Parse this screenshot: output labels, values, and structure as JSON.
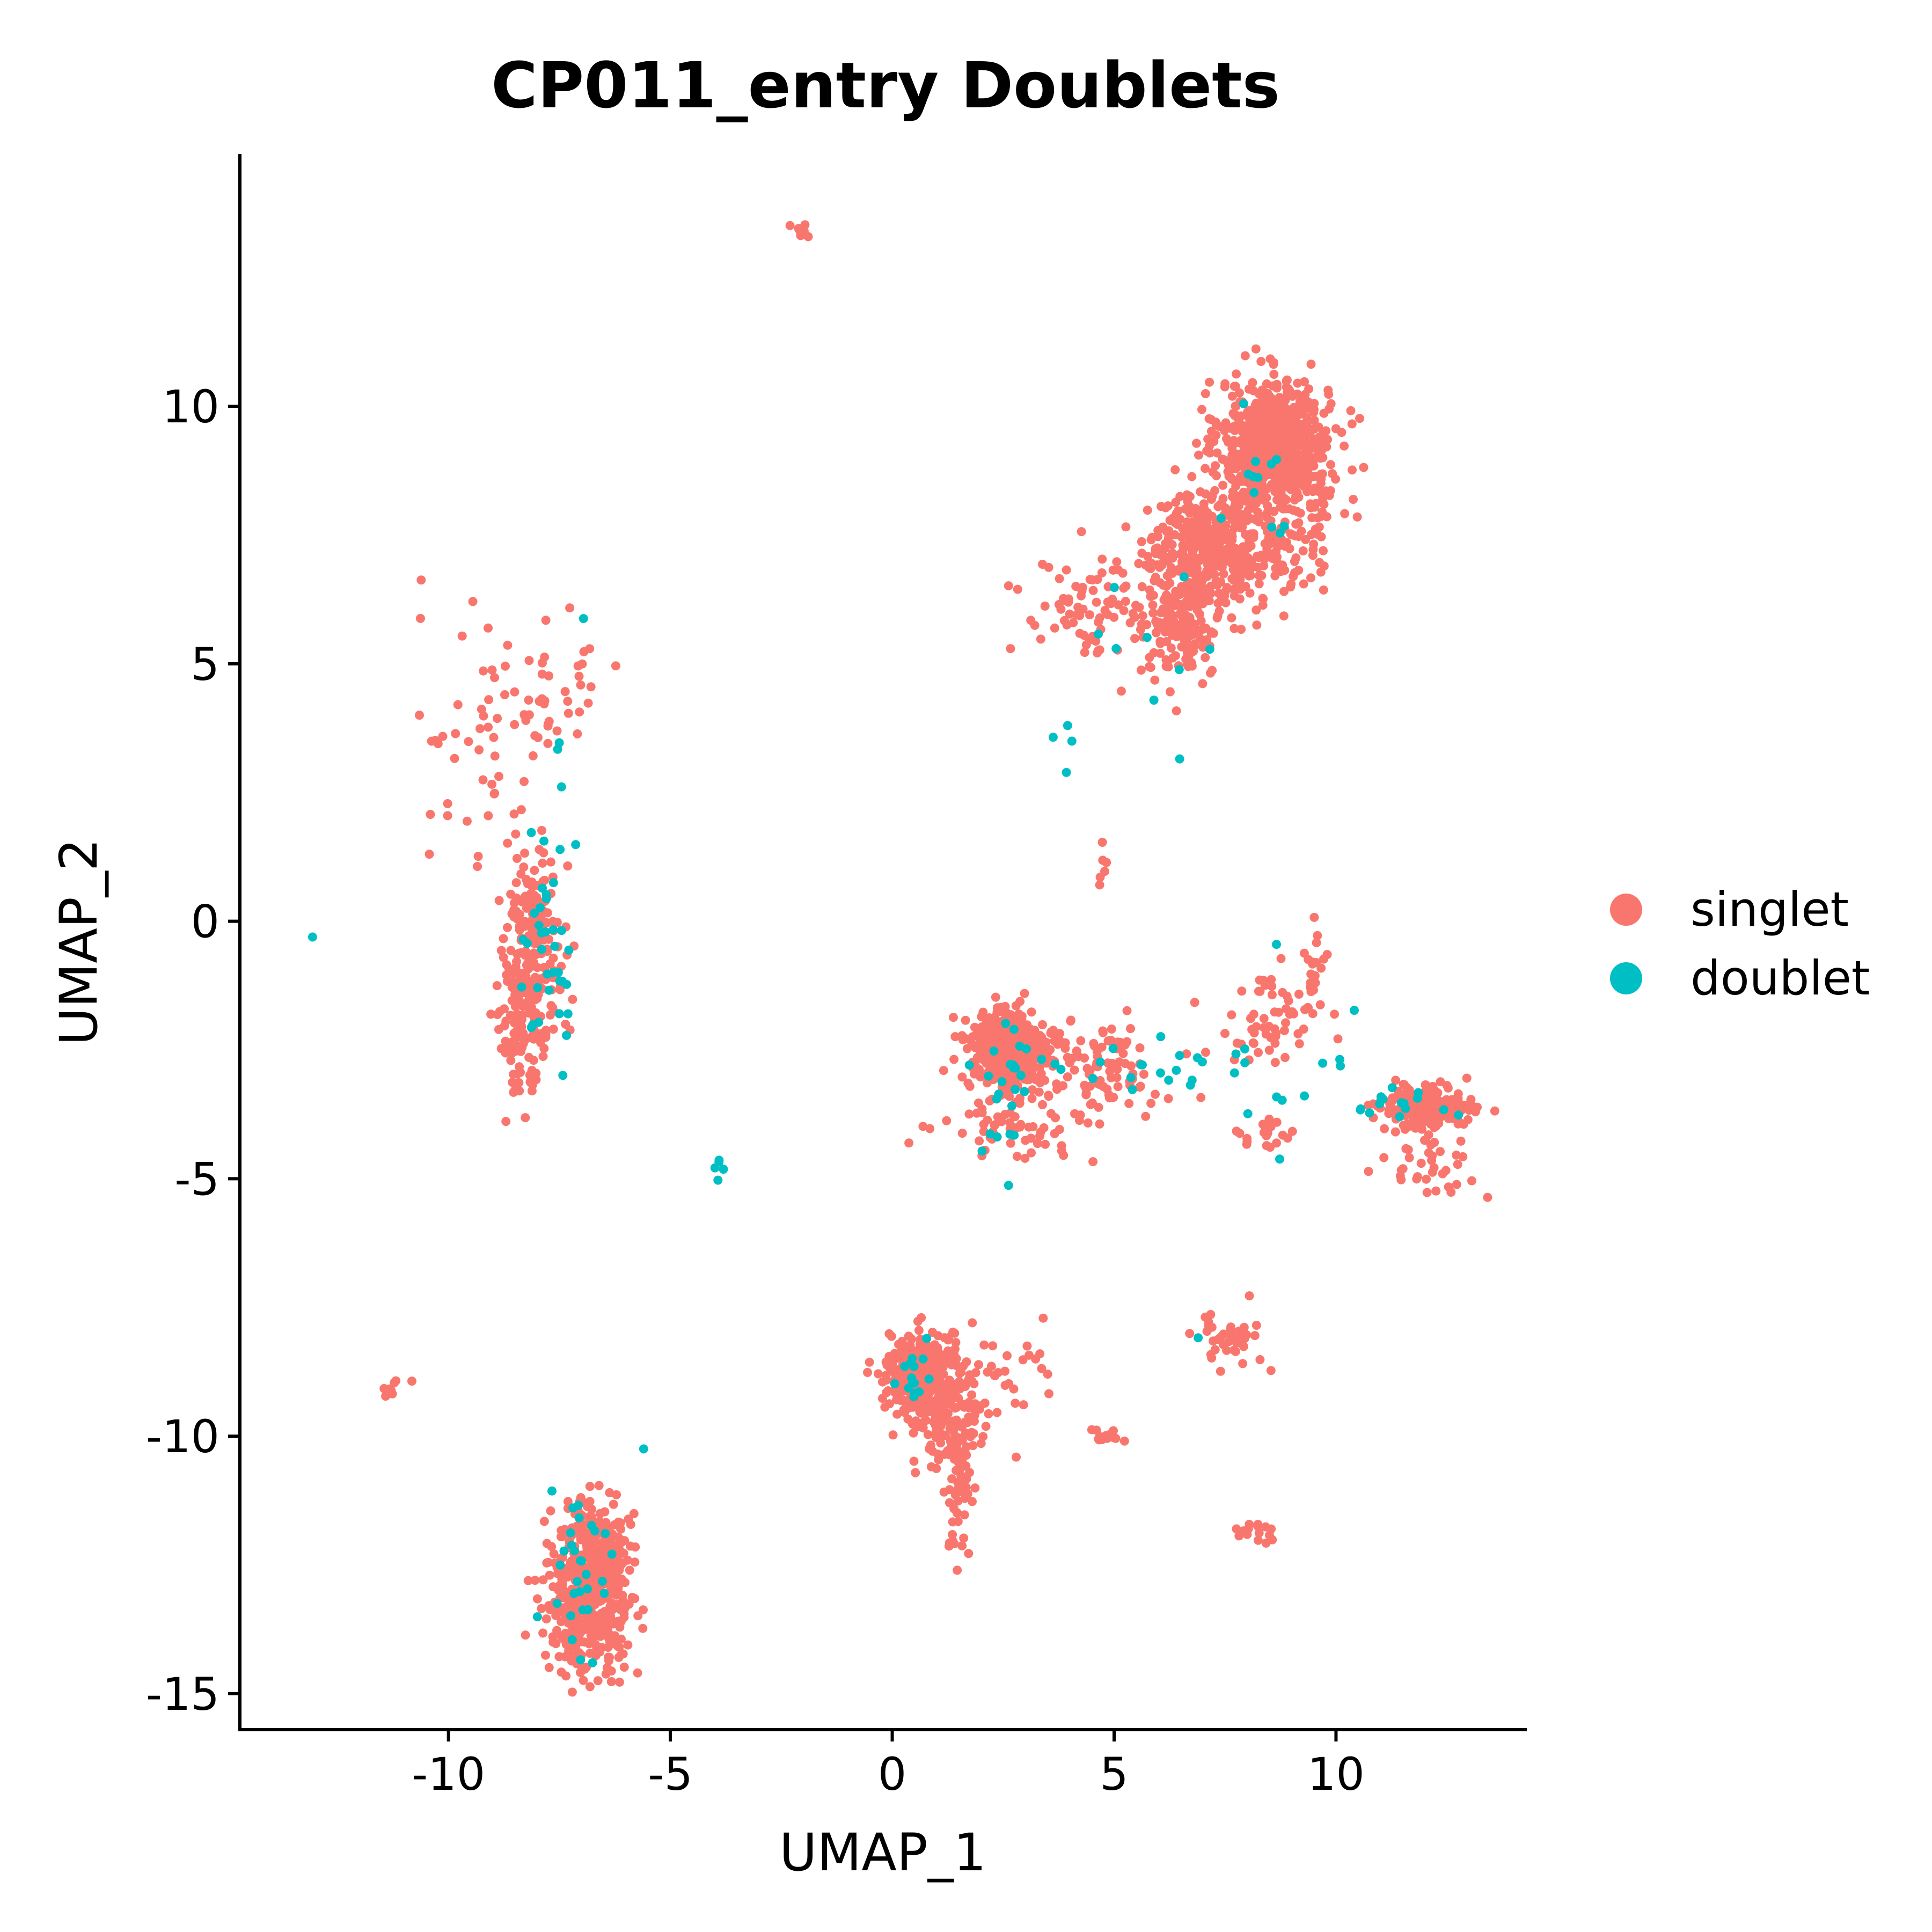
{
  "chart_data": {
    "type": "scatter",
    "title": "CP011_entry Doublets",
    "xlabel": "UMAP_1",
    "ylabel": "UMAP_2",
    "xlim": [
      -14.7,
      14.3
    ],
    "ylim": [
      -15.7,
      14.9
    ],
    "x_ticks": [
      -10,
      -5,
      0,
      5,
      10
    ],
    "x_tick_labels": [
      "-10",
      "-5",
      "0",
      "5",
      "10"
    ],
    "y_ticks": [
      -15,
      -10,
      -5,
      0,
      5,
      10
    ],
    "y_tick_labels": [
      "-15",
      "-10",
      "-5",
      "0",
      "5",
      "10"
    ],
    "grid": false,
    "legend_position": "right",
    "series": [
      {
        "name": "singlet",
        "color": "#F8766D",
        "clusters": [
          {
            "cx": 8.6,
            "cy": 9.3,
            "sx": 0.6,
            "sy": 0.6,
            "n": 700
          },
          {
            "cx": 7.4,
            "cy": 7.3,
            "sx": 0.8,
            "sy": 0.6,
            "n": 450
          },
          {
            "cx": 6.6,
            "cy": 5.9,
            "sx": 0.4,
            "sy": 0.6,
            "n": 180
          },
          {
            "cx": 4.6,
            "cy": 6.0,
            "sx": 1.0,
            "sy": 0.5,
            "n": 90
          },
          {
            "cx": 9.4,
            "cy": 8.5,
            "sx": 0.4,
            "sy": 0.8,
            "n": 100
          },
          {
            "cx": 2.6,
            "cy": -2.5,
            "sx": 0.45,
            "sy": 0.4,
            "n": 450
          },
          {
            "cx": 4.3,
            "cy": -2.9,
            "sx": 1.0,
            "sy": 0.45,
            "n": 120
          },
          {
            "cx": 2.8,
            "cy": -4.0,
            "sx": 0.8,
            "sy": 0.3,
            "n": 60
          },
          {
            "cx": 8.4,
            "cy": -2.0,
            "sx": 0.7,
            "sy": 0.45,
            "n": 60
          },
          {
            "cx": 8.5,
            "cy": -4.1,
            "sx": 0.3,
            "sy": 0.2,
            "n": 20
          },
          {
            "cx": 12.0,
            "cy": -3.6,
            "sx": 0.5,
            "sy": 0.2,
            "n": 200
          },
          {
            "cx": 12.0,
            "cy": -4.6,
            "sx": 0.6,
            "sy": 0.5,
            "n": 40
          },
          {
            "cx": 9.6,
            "cy": -0.9,
            "sx": 0.15,
            "sy": 0.4,
            "n": 20
          },
          {
            "cx": 0.6,
            "cy": -8.8,
            "sx": 0.35,
            "sy": 0.4,
            "n": 350
          },
          {
            "cx": 1.3,
            "cy": -9.6,
            "sx": 0.4,
            "sy": 0.6,
            "n": 150
          },
          {
            "cx": 1.5,
            "cy": -11.3,
            "sx": 0.12,
            "sy": 0.6,
            "n": 40
          },
          {
            "cx": 2.4,
            "cy": -8.8,
            "sx": 0.5,
            "sy": 0.5,
            "n": 30
          },
          {
            "cx": -6.8,
            "cy": -13.3,
            "sx": 0.5,
            "sy": 0.6,
            "n": 400
          },
          {
            "cx": -6.7,
            "cy": -12.0,
            "sx": 0.4,
            "sy": 0.4,
            "n": 150
          },
          {
            "cx": -8.1,
            "cy": -0.6,
            "sx": 0.35,
            "sy": 1.0,
            "n": 220
          },
          {
            "cx": -8.4,
            "cy": -2.0,
            "sx": 0.2,
            "sy": 0.7,
            "n": 60
          },
          {
            "cx": -7.6,
            "cy": 4.3,
            "sx": 0.8,
            "sy": 0.6,
            "n": 40
          },
          {
            "cx": -9.6,
            "cy": 3.6,
            "sx": 0.8,
            "sy": 1.1,
            "n": 45
          },
          {
            "cx": 7.6,
            "cy": -8.1,
            "sx": 0.4,
            "sy": 0.3,
            "n": 40
          },
          {
            "cx": 8.2,
            "cy": -11.9,
            "sx": 0.3,
            "sy": 0.2,
            "n": 15
          },
          {
            "cx": 4.9,
            "cy": -10.0,
            "sx": 0.2,
            "sy": 0.08,
            "n": 15
          },
          {
            "cx": 4.8,
            "cy": 1.1,
            "sx": 0.1,
            "sy": 0.2,
            "n": 6
          },
          {
            "cx": -2.1,
            "cy": 13.4,
            "sx": 0.15,
            "sy": 0.08,
            "n": 10
          },
          {
            "cx": -11.2,
            "cy": -9.1,
            "sx": 0.3,
            "sy": 0.08,
            "n": 8
          }
        ]
      },
      {
        "name": "doublet",
        "color": "#00BFC4",
        "clusters": [
          {
            "cx": 8.4,
            "cy": 8.8,
            "sx": 0.5,
            "sy": 0.9,
            "n": 12
          },
          {
            "cx": 6.5,
            "cy": 5.5,
            "sx": 0.5,
            "sy": 1.2,
            "n": 6
          },
          {
            "cx": 3.9,
            "cy": 3.6,
            "sx": 0.2,
            "sy": 0.5,
            "n": 4
          },
          {
            "cx": 4.8,
            "cy": 5.8,
            "sx": 0.2,
            "sy": 0.6,
            "n": 3
          },
          {
            "cx": 5.5,
            "cy": -2.8,
            "sx": 1.8,
            "sy": 0.3,
            "n": 30
          },
          {
            "cx": 2.6,
            "cy": -3.5,
            "sx": 0.4,
            "sy": 0.6,
            "n": 20
          },
          {
            "cx": 8.5,
            "cy": -3.6,
            "sx": 0.6,
            "sy": 0.3,
            "n": 5
          },
          {
            "cx": 11.6,
            "cy": -3.5,
            "sx": 0.6,
            "sy": 0.2,
            "n": 15
          },
          {
            "cx": 0.4,
            "cy": -8.9,
            "sx": 0.25,
            "sy": 0.3,
            "n": 15
          },
          {
            "cx": -7.0,
            "cy": -12.5,
            "sx": 0.45,
            "sy": 0.8,
            "n": 30
          },
          {
            "cx": -7.8,
            "cy": -0.6,
            "sx": 0.3,
            "sy": 1.0,
            "n": 35
          },
          {
            "cx": -7.3,
            "cy": 3.0,
            "sx": 0.3,
            "sy": 1.2,
            "n": 5
          },
          {
            "cx": -3.9,
            "cy": -4.9,
            "sx": 0.08,
            "sy": 0.1,
            "n": 5
          },
          {
            "cx": -13.0,
            "cy": -0.4,
            "sx": 0.05,
            "sy": 0.05,
            "n": 1
          },
          {
            "cx": -5.6,
            "cy": -10.2,
            "sx": 0.05,
            "sy": 0.05,
            "n": 1
          },
          {
            "cx": 8.7,
            "cy": -0.5,
            "sx": 0.05,
            "sy": 0.05,
            "n": 1
          },
          {
            "cx": 10.4,
            "cy": -1.8,
            "sx": 0.05,
            "sy": 0.05,
            "n": 1
          },
          {
            "cx": 6.9,
            "cy": -8.1,
            "sx": 0.05,
            "sy": 0.05,
            "n": 1
          }
        ]
      }
    ]
  }
}
